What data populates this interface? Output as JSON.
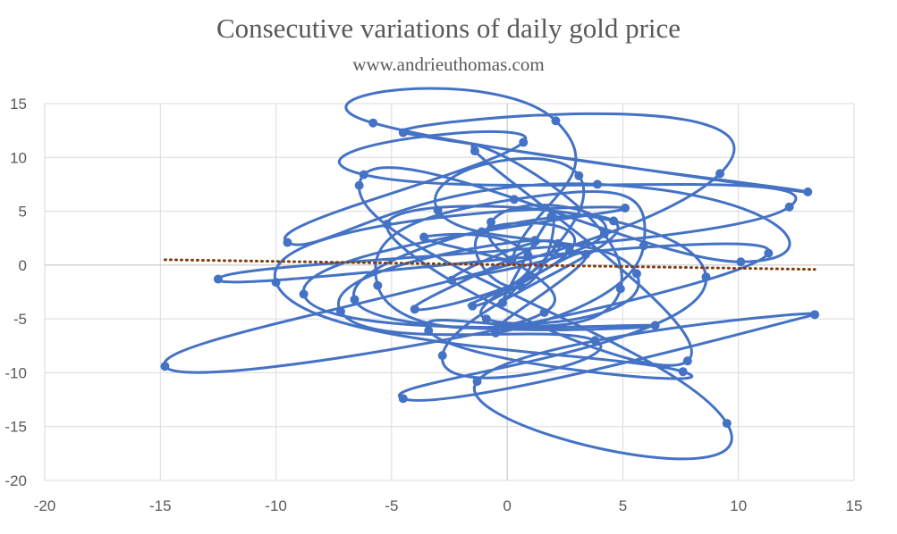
{
  "chart_data": {
    "type": "scatter",
    "title": "Consecutive variations of daily gold price",
    "subtitle": "www.andrieuthomas.com",
    "xlabel": "",
    "ylabel": "",
    "xlim": [
      -20,
      15
    ],
    "ylim": [
      -20,
      15
    ],
    "x_ticks": [
      -20,
      -15,
      -10,
      -5,
      0,
      5,
      10,
      15
    ],
    "y_ticks": [
      -20,
      -15,
      -10,
      -5,
      0,
      5,
      10,
      15
    ],
    "x_tick_labels": [
      "-20",
      "-15",
      "-10",
      "-5",
      "0",
      "5",
      "10",
      "15"
    ],
    "y_tick_labels": [
      "-20",
      "-15",
      "-10",
      "-5",
      "0",
      "5",
      "10",
      "15"
    ],
    "grid": true,
    "legend": "none",
    "series": [
      {
        "style": "smooth-line-with-markers",
        "color": "#4472C4",
        "x": [
          0.2,
          2.1,
          -5.8,
          13.0,
          -4.5,
          9.2,
          -14.8,
          11.3,
          -12.5,
          12.2,
          -6.2,
          0.7,
          -9.5,
          3.9,
          10.1,
          -6.4,
          9.5,
          -1.3,
          13.3,
          -4.5,
          8.6,
          -5.2,
          7.8,
          -1.4,
          4.9,
          -3.4,
          7.6,
          -10.0,
          5.1,
          -8.8,
          6.4,
          -6.6,
          4.6,
          -2.8,
          3.8,
          -7.2,
          1.2,
          -4.0,
          2.7,
          -1.1,
          0.6,
          1.9,
          -0.2,
          3.1,
          -3.0,
          5.6,
          -0.9,
          2.2,
          -2.4,
          4.2,
          -0.7,
          1.6,
          -5.6,
          0.3,
          5.9,
          -0.5,
          3.4,
          -1.5,
          0.9,
          -3.6,
          0.1
        ],
        "y": [
          0.5,
          13.4,
          13.2,
          6.8,
          12.3,
          8.5,
          -9.4,
          1.1,
          -1.3,
          5.4,
          8.4,
          11.4,
          2.1,
          7.5,
          0.3,
          7.4,
          -14.7,
          -10.8,
          -4.6,
          -12.4,
          -1.1,
          3.8,
          -8.9,
          10.6,
          -2.2,
          -6.1,
          -9.9,
          -1.6,
          5.3,
          -2.7,
          -5.6,
          -3.2,
          4.1,
          -8.4,
          -7.0,
          -4.3,
          2.3,
          -4.1,
          1.3,
          3.1,
          -2.0,
          4.5,
          -3.5,
          8.3,
          5.1,
          -0.8,
          -5.0,
          2.0,
          -1.4,
          2.9,
          4.0,
          -4.4,
          -1.9,
          6.1,
          1.8,
          -6.3,
          1.0,
          -3.8,
          0.9,
          2.6,
          0.4
        ]
      }
    ],
    "trendline": {
      "style": "dotted",
      "color": "#843C0C",
      "from": [
        -14.8,
        0.5
      ],
      "to": [
        13.3,
        -0.4
      ]
    }
  }
}
